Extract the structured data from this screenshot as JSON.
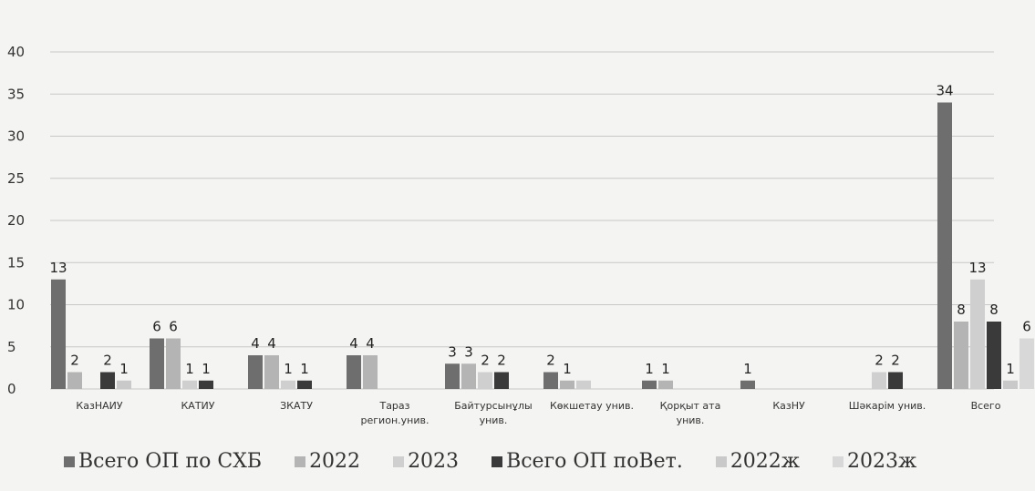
{
  "chart_data": {
    "type": "bar",
    "categories": [
      "КазНАИУ",
      "КАТИУ",
      "ЗКАТУ",
      "Тараз регион.унив.",
      "Байтурсынұлы унив.",
      "Көкшетау унив.",
      "Қорқыт ата унив.",
      "КазНУ",
      "Шәкарім унив.",
      "Всего"
    ],
    "category_lines": [
      [
        "КазНАИУ"
      ],
      [
        "КАТИУ"
      ],
      [
        "ЗКАТУ"
      ],
      [
        "Тараз",
        "регион.унив."
      ],
      [
        "Байтурсынұлы",
        "унив."
      ],
      [
        "Көкшетау унив."
      ],
      [
        "Қорқыт ата",
        "унив."
      ],
      [
        "КазНУ"
      ],
      [
        "Шәкарім унив."
      ],
      [
        "Всего"
      ]
    ],
    "series": [
      {
        "name": "Всего ОП по СХБ",
        "color": "#6e6e6e",
        "values": [
          13,
          6,
          4,
          4,
          3,
          2,
          1,
          1,
          null,
          34
        ]
      },
      {
        "name": "2022",
        "color": "#b4b4b4",
        "values": [
          2,
          6,
          4,
          4,
          3,
          1,
          1,
          null,
          null,
          8
        ]
      },
      {
        "name": "2023",
        "color": "#cfcfcf",
        "values": [
          null,
          1,
          1,
          null,
          2,
          1,
          null,
          null,
          2,
          13
        ]
      },
      {
        "name": "Всего ОП поВет.",
        "color": "#3a3a3a",
        "values": [
          2,
          1,
          1,
          null,
          2,
          null,
          null,
          null,
          2,
          8
        ]
      },
      {
        "name": "2022ж",
        "color": "#c9c9c9",
        "values": [
          1,
          null,
          null,
          null,
          null,
          null,
          null,
          null,
          null,
          1
        ]
      },
      {
        "name": "2023ж",
        "color": "#d8d8d8",
        "values": [
          null,
          null,
          null,
          null,
          null,
          null,
          null,
          null,
          null,
          6
        ]
      }
    ],
    "labels": [
      {
        "category": 0,
        "text": "13",
        "dx": 0,
        "value": 13,
        "series": 0
      },
      {
        "category": 0,
        "text": "2",
        "value": 2,
        "series": 1
      },
      {
        "category": 0,
        "text": "2",
        "value": 2,
        "series": 3
      },
      {
        "category": 0,
        "text": "1",
        "value": 1,
        "series": 4
      },
      {
        "category": 1,
        "text": "6",
        "value": 6,
        "series": 0
      },
      {
        "category": 1,
        "text": "6",
        "value": 6,
        "series": 1
      },
      {
        "category": 1,
        "text": "1",
        "value": 1,
        "series": 3
      },
      {
        "category": 1,
        "text": "1",
        "value": 1,
        "series": 2
      },
      {
        "category": 2,
        "text": "4",
        "value": 4,
        "series": 0
      },
      {
        "category": 2,
        "text": "4",
        "value": 4,
        "series": 1
      },
      {
        "category": 2,
        "text": "1",
        "value": 1,
        "series": 3
      },
      {
        "category": 2,
        "text": "1",
        "value": 1,
        "series": 2
      },
      {
        "category": 3,
        "text": "4",
        "value": 4,
        "series": 0
      },
      {
        "category": 3,
        "text": "4",
        "value": 4,
        "series": 1
      },
      {
        "category": 4,
        "text": "3",
        "value": 3,
        "series": 0
      },
      {
        "category": 4,
        "text": "3",
        "value": 3,
        "series": 1
      },
      {
        "category": 4,
        "text": "2",
        "value": 2,
        "series": 3
      },
      {
        "category": 4,
        "text": "2",
        "value": 2,
        "series": 2
      },
      {
        "category": 5,
        "text": "2",
        "value": 2,
        "series": 0
      },
      {
        "category": 5,
        "text": "1",
        "value": 1,
        "series": 1
      },
      {
        "category": 6,
        "text": "1",
        "value": 1,
        "series": 0
      },
      {
        "category": 6,
        "text": "1",
        "value": 1,
        "series": 1
      },
      {
        "category": 7,
        "text": "1",
        "value": 1,
        "series": 0
      },
      {
        "category": 8,
        "text": "2",
        "value": 2,
        "series": 3
      },
      {
        "category": 8,
        "text": "2",
        "value": 2,
        "series": 2
      },
      {
        "category": 9,
        "text": "34",
        "value": 34,
        "series": 0
      },
      {
        "category": 9,
        "text": "8",
        "value": 8,
        "series": 1
      },
      {
        "category": 9,
        "text": "13",
        "value": 13,
        "series": 2
      },
      {
        "category": 9,
        "text": "8",
        "value": 8,
        "series": 3
      },
      {
        "category": 9,
        "text": "1",
        "value": 1,
        "series": 4
      },
      {
        "category": 9,
        "text": "6",
        "value": 6,
        "series": 5
      }
    ],
    "ylim": [
      0,
      40
    ],
    "yticks": [
      0,
      5,
      10,
      15,
      20,
      25,
      30,
      35,
      40
    ],
    "grid": true,
    "legend_position": "bottom",
    "title": "",
    "xlabel": "",
    "ylabel": ""
  }
}
